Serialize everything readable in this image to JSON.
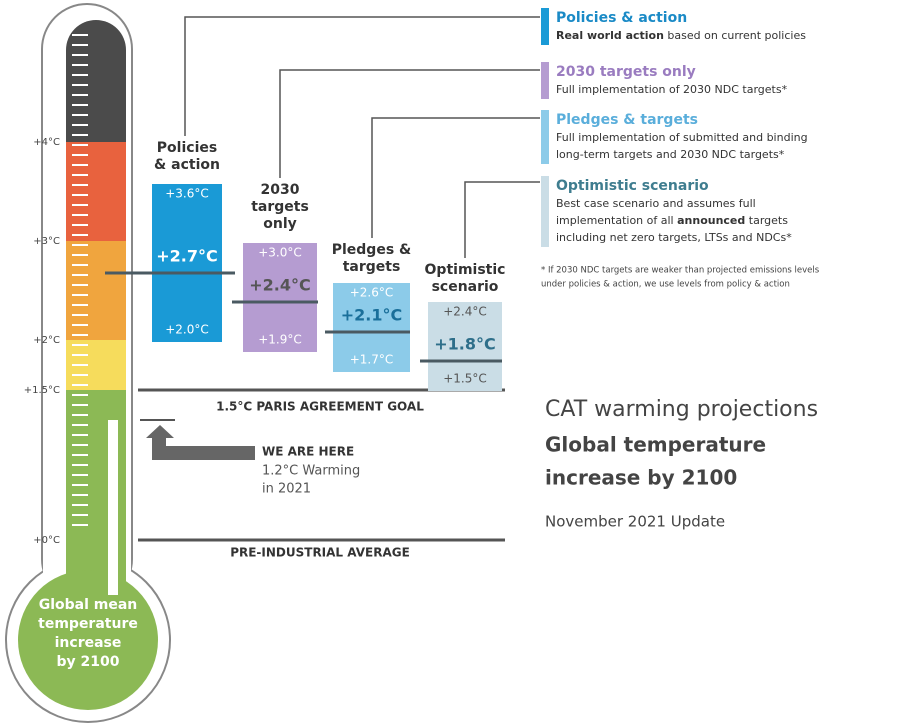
{
  "axis_labels": [
    "+4°C",
    "+3°C",
    "+2°C",
    "+1.5°C",
    "+0°C"
  ],
  "scenarios": [
    {
      "title": [
        "Policies",
        "& action"
      ],
      "high": "+3.6°C",
      "mid": "+2.7°C",
      "low": "+2.0°C"
    },
    {
      "title": [
        "2030",
        "targets",
        "only"
      ],
      "high": "+3.0°C",
      "mid": "+2.4°C",
      "low": "+1.9°C"
    },
    {
      "title": [
        "Pledges &",
        "targets"
      ],
      "high": "+2.6°C",
      "mid": "+2.1°C",
      "low": "+1.7°C"
    },
    {
      "title": [
        "Optimistic",
        "scenario"
      ],
      "high": "+2.4°C",
      "mid": "+1.8°C",
      "low": "+1.5°C"
    }
  ],
  "legend": [
    {
      "title": "Policies & action",
      "lines": [
        [
          {
            "t": "Real world action",
            "b": true
          },
          {
            "t": " based on current policies"
          }
        ]
      ]
    },
    {
      "title": "2030 targets only",
      "lines": [
        [
          {
            "t": "Full implementation of 2030 NDC targets*"
          }
        ]
      ]
    },
    {
      "title": "Pledges & targets",
      "lines": [
        [
          {
            "t": "Full implementation of submitted and binding"
          }
        ],
        [
          {
            "t": "long-term targets and 2030 NDC targets*"
          }
        ]
      ]
    },
    {
      "title": "Optimistic scenario",
      "lines": [
        [
          {
            "t": "Best case scenario and assumes full"
          }
        ],
        [
          {
            "t": "implementation of all "
          },
          {
            "t": "announced",
            "b": true
          },
          {
            "t": " targets"
          }
        ],
        [
          {
            "t": "including net zero targets, LTSs and NDCs*"
          }
        ]
      ]
    }
  ],
  "footnote": [
    "* If 2030 NDC targets are weaker than projected emissions levels",
    "under policies & action, we use levels from policy & action"
  ],
  "goal_label": "1.5°C PARIS AGREEMENT GOAL",
  "baseline_label": "PRE-INDUSTRIAL AVERAGE",
  "we_are_here": {
    "title": "WE ARE HERE",
    "detail": [
      "1.2°C Warming",
      "in 2021"
    ]
  },
  "heading": {
    "line1": "CAT warming projections",
    "line2": "Global temperature",
    "line3": "increase by 2100",
    "update": "November 2021 Update"
  },
  "bulb_label": [
    "Global mean",
    "temperature",
    "increase",
    "by 2100"
  ]
}
